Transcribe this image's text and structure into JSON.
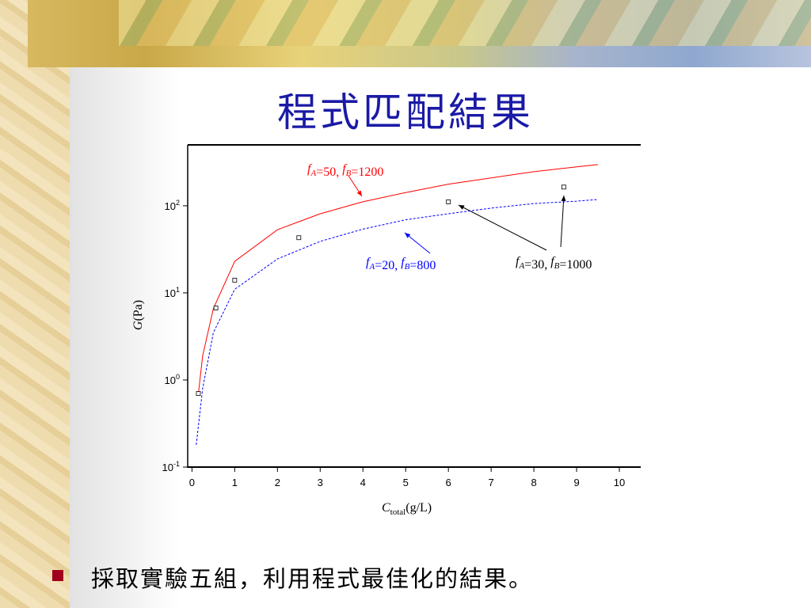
{
  "slide_title": "程式匹配結果",
  "bullet": "採取實驗五組，利用程式最佳化的結果。",
  "chart_data": {
    "type": "line",
    "y_label": [
      "G",
      "(Pa)"
    ],
    "x_label": [
      "C",
      "total",
      "(g/L)"
    ],
    "xlim": [
      -0.1,
      10.5
    ],
    "xticks": [
      0,
      1,
      2,
      3,
      4,
      5,
      6,
      7,
      8,
      9,
      10
    ],
    "ylim": [
      0.1,
      500
    ],
    "log_y": true,
    "yticks": [
      {
        "value": 0.1,
        "label": "10",
        "exp": "-1"
      },
      {
        "value": 1,
        "label": "10",
        "exp": "0"
      },
      {
        "value": 10,
        "label": "10",
        "exp": "1"
      },
      {
        "value": 100,
        "label": "10",
        "exp": "2"
      }
    ],
    "series": [
      {
        "type": "line",
        "color": "#ff0000",
        "dash": false,
        "x": [
          0.15,
          0.25,
          0.5,
          1,
          2,
          3,
          4,
          5,
          6,
          7,
          8,
          9,
          9.5
        ],
        "values": [
          0.7,
          1.9,
          6.6,
          23,
          53,
          81,
          111,
          142,
          177,
          209,
          246,
          280,
          297
        ]
      },
      {
        "type": "line",
        "color": "#0000ff",
        "dash": true,
        "x": [
          0.1,
          0.25,
          0.5,
          1,
          2,
          3,
          4,
          5,
          6,
          7,
          8,
          9,
          9.5
        ],
        "values": [
          0.18,
          0.8,
          3.5,
          11,
          24.5,
          39,
          54,
          69,
          81,
          94,
          106,
          113,
          118
        ]
      },
      {
        "type": "scatter",
        "color": "#000000",
        "x": [
          0.15,
          0.56,
          1,
          2.5,
          6,
          8.7
        ],
        "values": [
          0.7,
          6.7,
          14,
          43,
          111,
          164
        ]
      }
    ],
    "annotations": [
      {
        "color": "#ff0000",
        "parts": [
          "f",
          "A",
          "=50, ",
          "f",
          "B",
          "=1200"
        ]
      },
      {
        "color": "#0000ff",
        "parts": [
          "f",
          "A",
          "=20, ",
          "f",
          "B",
          "=800"
        ]
      },
      {
        "color": "#000000",
        "parts": [
          "f",
          "A",
          "=30, ",
          "f",
          "B",
          "=1000"
        ]
      }
    ]
  }
}
